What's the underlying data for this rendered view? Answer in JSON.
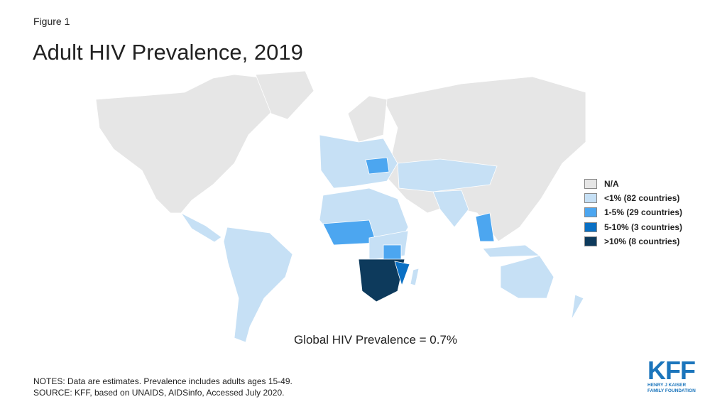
{
  "figure_label": "Figure 1",
  "title": "Adult HIV Prevalence, 2019",
  "legend": [
    {
      "label": "N/A",
      "color": "#e6e6e6"
    },
    {
      "label": "<1% (82 countries)",
      "color": "#c6e0f5"
    },
    {
      "label": "1-5% (29 countries)",
      "color": "#4ca6f0"
    },
    {
      "label": "5-10% (3 countries)",
      "color": "#0a70c4"
    },
    {
      "label": ">10% (8 countries)",
      "color": "#0d3a5c"
    }
  ],
  "annotation": "Global HIV Prevalence = 0.7%",
  "notes": "NOTES: Data are estimates. Prevalence includes adults ages 15-49.",
  "source": "SOURCE: KFF, based on UNAIDS, AIDSinfo, Accessed July 2020.",
  "logo": {
    "mark": "KFF",
    "line1": "HENRY J KAISER",
    "line2": "FAMILY FOUNDATION"
  }
}
